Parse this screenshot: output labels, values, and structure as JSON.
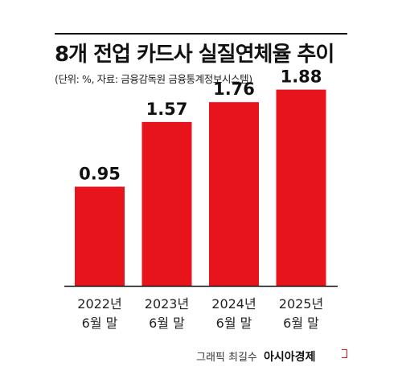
{
  "header": {
    "title": "8개 전업 카드사 실질연체율 추이",
    "subtitle": "(단위: %, 자료: 금융감독원 금융통계정보시스템)"
  },
  "chart_data": {
    "type": "bar",
    "title": "8개 전업 카드사 실질연체율 추이",
    "subtitle": "(단위: %, 자료: 금융감독원 금융통계정보시스템)",
    "categories": [
      [
        "2022년",
        "6월 말"
      ],
      [
        "2023년",
        "6월 말"
      ],
      [
        "2024년",
        "6월 말"
      ],
      [
        "2025년",
        "6월 말"
      ]
    ],
    "values": [
      0.95,
      1.57,
      1.76,
      1.88
    ],
    "value_labels": [
      "0.95",
      "1.57",
      "1.76",
      "1.88"
    ],
    "bar_color": "#e8141c",
    "ylim": [
      0,
      2.4
    ],
    "grid": false,
    "legend": "none"
  },
  "footer": {
    "credit": "그래픽 최길수",
    "brand": "아시아경제"
  },
  "colors": {
    "bar": "#e8141c",
    "text": "#111111",
    "axis": "#111111"
  }
}
